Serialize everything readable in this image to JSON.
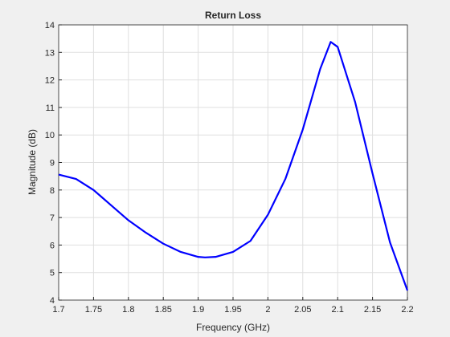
{
  "chart_data": {
    "type": "line",
    "title": "Return Loss",
    "x_label": "Frequency (GHz)",
    "y_label": "Magnitude (dB)",
    "x": [
      1.7,
      1.725,
      1.75,
      1.775,
      1.8,
      1.825,
      1.85,
      1.875,
      1.9,
      1.91,
      1.925,
      1.95,
      1.975,
      2.0,
      2.025,
      2.05,
      2.075,
      2.09,
      2.1,
      2.125,
      2.15,
      2.175,
      2.2
    ],
    "series": [
      {
        "name": "Return Loss",
        "color": "#0000ff",
        "values": [
          8.56,
          8.4,
          8.0,
          7.45,
          6.9,
          6.45,
          6.05,
          5.75,
          5.57,
          5.55,
          5.57,
          5.75,
          6.15,
          7.1,
          8.4,
          10.2,
          12.4,
          13.38,
          13.2,
          11.2,
          8.6,
          6.1,
          4.35
        ]
      }
    ],
    "xlim": [
      1.7,
      2.2
    ],
    "xticks": [
      1.7,
      1.75,
      1.8,
      1.85,
      1.9,
      1.95,
      2,
      2.05,
      2.1,
      2.15,
      2.2
    ],
    "ylim": [
      4,
      14
    ],
    "yticks": [
      4,
      5,
      6,
      7,
      8,
      9,
      10,
      11,
      12,
      13,
      14
    ],
    "grid": true
  }
}
